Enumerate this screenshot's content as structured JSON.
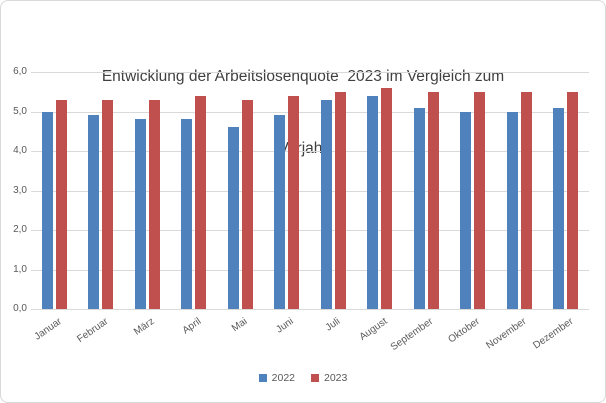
{
  "chart_data": {
    "type": "bar",
    "title": "Entwicklung der Arbeitslosenquote  2023 im Vergleich zum Vorjahr",
    "title_lines": [
      "Entwicklung der Arbeitslosenquote  2023 im Vergleich zum",
      "Vorjahr"
    ],
    "categories": [
      "Januar",
      "Februar",
      "März",
      "April",
      "Mai",
      "Juni",
      "Juli",
      "August",
      "September",
      "Oktober",
      "November",
      "Dezember"
    ],
    "series": [
      {
        "name": "2022",
        "color": "#4F81BD",
        "values": [
          5.0,
          4.9,
          4.8,
          4.8,
          4.6,
          4.9,
          5.3,
          5.4,
          5.1,
          5.0,
          5.0,
          5.1
        ]
      },
      {
        "name": "2023",
        "color": "#C0504D",
        "values": [
          5.3,
          5.3,
          5.3,
          5.4,
          5.3,
          5.4,
          5.5,
          5.6,
          5.5,
          5.5,
          5.5,
          5.5
        ]
      }
    ],
    "xlabel": "",
    "ylabel": "",
    "ylim": [
      0,
      6
    ],
    "ytick_step": 1,
    "ytick_labels": [
      "0,0",
      "1,0",
      "2,0",
      "3,0",
      "4,0",
      "5,0",
      "6,0"
    ],
    "grid": true,
    "legend_position": "bottom"
  },
  "colors": {
    "grid": "#D9D9D9",
    "axis_text": "#595959",
    "title_text": "#404040",
    "frame_border": "#D9D9D9",
    "background": "#FFFFFF"
  }
}
